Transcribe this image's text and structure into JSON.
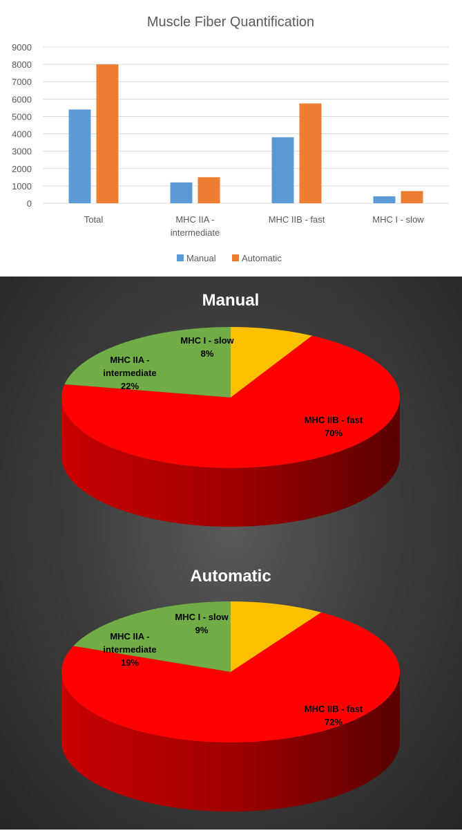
{
  "chart_data": [
    {
      "type": "bar",
      "title": "Muscle Fiber Quantification",
      "categories": [
        "Total",
        "MHC IIA - intermediate",
        "MHC IIB - fast",
        "MHC I - slow"
      ],
      "series": [
        {
          "name": "Manual",
          "values": [
            5400,
            1200,
            3800,
            400
          ],
          "color": "#5b9bd5"
        },
        {
          "name": "Automatic",
          "values": [
            8000,
            1500,
            5750,
            700
          ],
          "color": "#ed7d31"
        }
      ],
      "ylim": [
        0,
        9000
      ],
      "yticks": [
        0,
        1000,
        2000,
        3000,
        4000,
        5000,
        6000,
        7000,
        8000,
        9000
      ],
      "grid": true,
      "legend": "bottom"
    },
    {
      "type": "pie",
      "title": "Manual",
      "slices": [
        {
          "label": "MHC I - slow",
          "value": 8,
          "value_label": "8%",
          "color": "#ffc000"
        },
        {
          "label": "MHC IIB - fast",
          "value": 70,
          "value_label": "70%",
          "color": "#ff0000"
        },
        {
          "label": "MHC IIA - intermediate",
          "value": 22,
          "value_label": "22%",
          "color": "#70ad47"
        }
      ]
    },
    {
      "type": "pie",
      "title": "Automatic",
      "slices": [
        {
          "label": "MHC I - slow",
          "value": 9,
          "value_label": "9%",
          "color": "#ffc000"
        },
        {
          "label": "MHC IIB - fast",
          "value": 72,
          "value_label": "72%",
          "color": "#ff0000"
        },
        {
          "label": "MHC IIA - intermediate",
          "value": 19,
          "value_label": "19%",
          "color": "#70ad47"
        }
      ]
    }
  ]
}
